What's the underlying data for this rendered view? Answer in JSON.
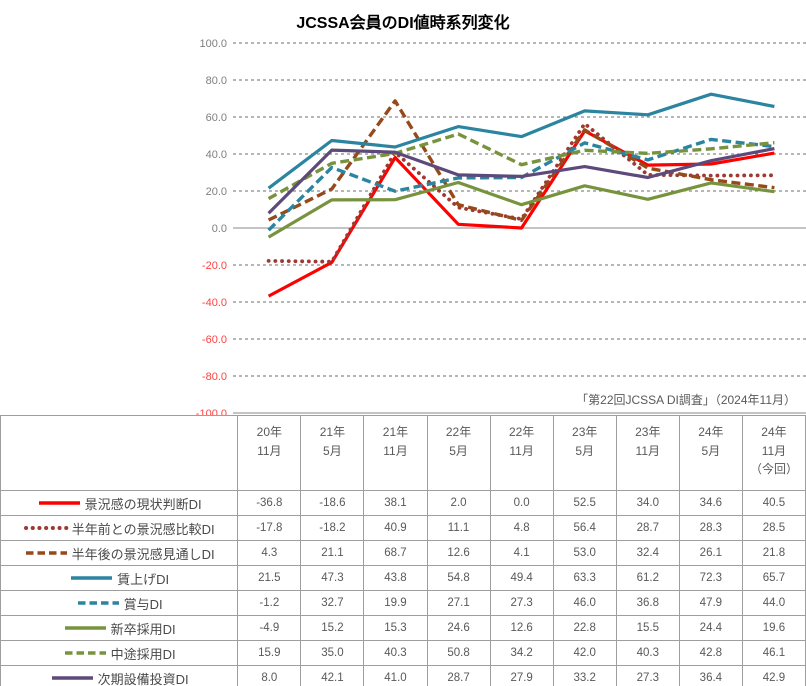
{
  "chart_data": {
    "type": "line",
    "title": "JCSSA会員のDI値時系列変化",
    "source_note": "「第22回JCSSA DI調査」（2024年11月）",
    "xlabel": "",
    "ylabel": "",
    "ylim": [
      -100,
      100
    ],
    "y_step": 20,
    "grid": true,
    "legend_position": "table-left",
    "axis_colors": {
      "positive_tick": "#7f7f7f",
      "negative_tick": "#ff4242"
    },
    "categories": [
      "20年\n11月",
      "21年\n5月",
      "21年\n11月",
      "22年\n5月",
      "22年\n11月",
      "23年\n5月",
      "23年\n11月",
      "24年\n5月",
      "24年\n11月\n（今回）"
    ],
    "series": [
      {
        "name": "景況感の現状判断DI",
        "color": "#ff0000",
        "line_style": "solid",
        "values": [
          -36.8,
          -18.6,
          38.1,
          2.0,
          0.0,
          52.5,
          34.0,
          34.6,
          40.5
        ]
      },
      {
        "name": "半年前との景況感比較DI",
        "color": "#9e3a32",
        "line_style": "dotted",
        "values": [
          -17.8,
          -18.2,
          40.9,
          11.1,
          4.8,
          56.4,
          28.7,
          28.3,
          28.5
        ]
      },
      {
        "name": "半年後の景況感見通しDI",
        "color": "#96491a",
        "line_style": "dashed",
        "values": [
          4.3,
          21.1,
          68.7,
          12.6,
          4.1,
          53.0,
          32.4,
          26.1,
          21.8
        ]
      },
      {
        "name": "賃上げDI",
        "color": "#2b84a0",
        "line_style": "solid",
        "values": [
          21.5,
          47.3,
          43.8,
          54.8,
          49.4,
          63.3,
          61.2,
          72.3,
          65.7
        ]
      },
      {
        "name": "賞与DI",
        "color": "#2b84a0",
        "line_style": "dashed",
        "values": [
          -1.2,
          32.7,
          19.9,
          27.1,
          27.3,
          46.0,
          36.8,
          47.9,
          44.0
        ]
      },
      {
        "name": "新卒採用DI",
        "color": "#78933d",
        "line_style": "solid",
        "values": [
          -4.9,
          15.2,
          15.3,
          24.6,
          12.6,
          22.8,
          15.5,
          24.4,
          19.6
        ]
      },
      {
        "name": "中途採用DI",
        "color": "#78933d",
        "line_style": "dashed",
        "values": [
          15.9,
          35.0,
          40.3,
          50.8,
          34.2,
          42.0,
          40.3,
          42.8,
          46.1
        ]
      },
      {
        "name": "次期設備投資DI",
        "color": "#5d4a7b",
        "line_style": "solid",
        "values": [
          8.0,
          42.1,
          41.0,
          28.7,
          27.9,
          33.2,
          27.3,
          36.4,
          42.9
        ]
      }
    ]
  }
}
